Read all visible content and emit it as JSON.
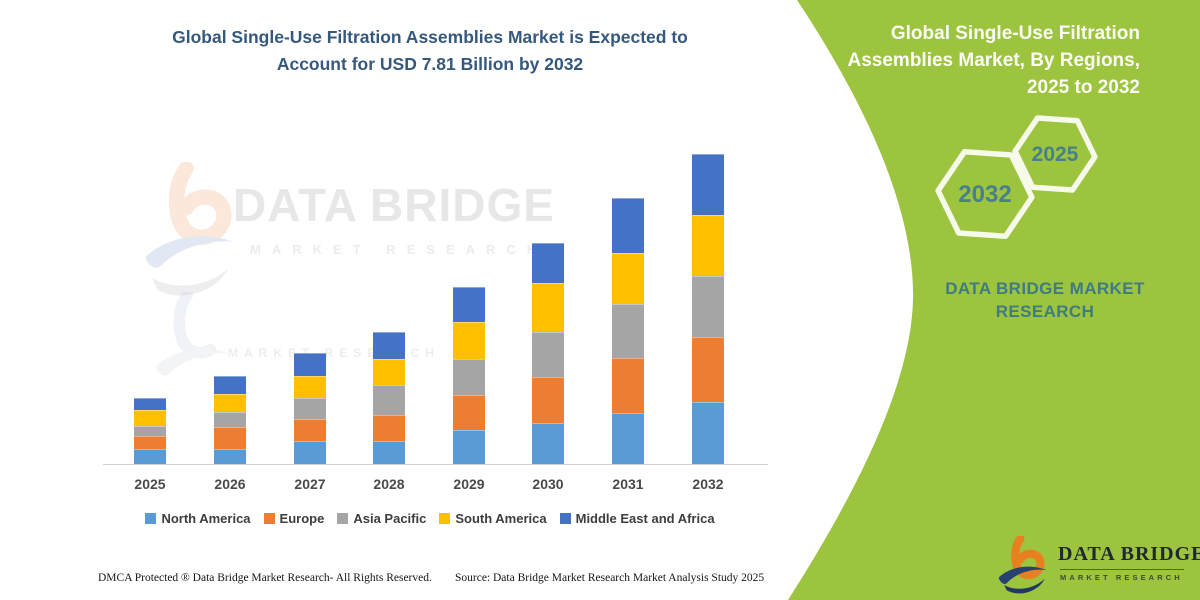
{
  "title": {
    "line1": "Global Single-Use Filtration Assemblies Market is Expected to",
    "line2": "Account for USD 7.81 Billion by 2032"
  },
  "chart_data": {
    "type": "bar",
    "stacked": true,
    "title": "Global Single-Use Filtration Assemblies Market is Expected to Account for USD 7.81 Billion by 2032",
    "unit": "USD Billion",
    "categories": [
      "2025",
      "2026",
      "2027",
      "2028",
      "2029",
      "2030",
      "2031",
      "2032"
    ],
    "series": [
      {
        "name": "North America",
        "color": "#5B9BD5",
        "values": [
          0.38,
          0.38,
          0.57,
          0.59,
          0.86,
          1.03,
          1.28,
          1.57
        ]
      },
      {
        "name": "Europe",
        "color": "#ED7D31",
        "values": [
          0.32,
          0.55,
          0.56,
          0.65,
          0.88,
          1.17,
          1.38,
          1.64
        ]
      },
      {
        "name": "Asia Pacific",
        "color": "#A5A5A5",
        "values": [
          0.27,
          0.38,
          0.53,
          0.74,
          0.91,
          1.13,
          1.38,
          1.53
        ]
      },
      {
        "name": "South America",
        "color": "#FFC000",
        "values": [
          0.38,
          0.46,
          0.56,
          0.67,
          0.93,
          1.22,
          1.28,
          1.53
        ]
      },
      {
        "name": "Middle East and Africa",
        "color": "#4472C4",
        "values": [
          0.32,
          0.45,
          0.59,
          0.68,
          0.87,
          1.01,
          1.38,
          1.54
        ]
      }
    ],
    "totals": [
      1.67,
      2.22,
      2.81,
      3.33,
      4.45,
      5.56,
      6.7,
      7.81
    ],
    "ylim": [
      0,
      7.81
    ],
    "grid": false,
    "legend_position": "bottom"
  },
  "watermark": {
    "text": "DATA BRIDGE",
    "sub": "MARKET RESEARCH"
  },
  "panel": {
    "bg_color": "#9CC43E",
    "heading_line1": "Global Single-Use Filtration",
    "heading_line2": "Assemblies Market, By Regions,",
    "heading_line3": "2025 to 2032",
    "hexagons": [
      {
        "label": "2032"
      },
      {
        "label": "2025"
      }
    ],
    "brand_line1": "DATA BRIDGE MARKET",
    "brand_line2": "RESEARCH",
    "logo": {
      "name": "DATA BRIDGE",
      "sub": "MARKET RESEARCH"
    }
  },
  "footer": {
    "left": "DMCA Protected ® Data Bridge Market Research-  All Rights Reserved.",
    "right": "Source: Data Bridge Market Research  Market Analysis Study 2025"
  }
}
